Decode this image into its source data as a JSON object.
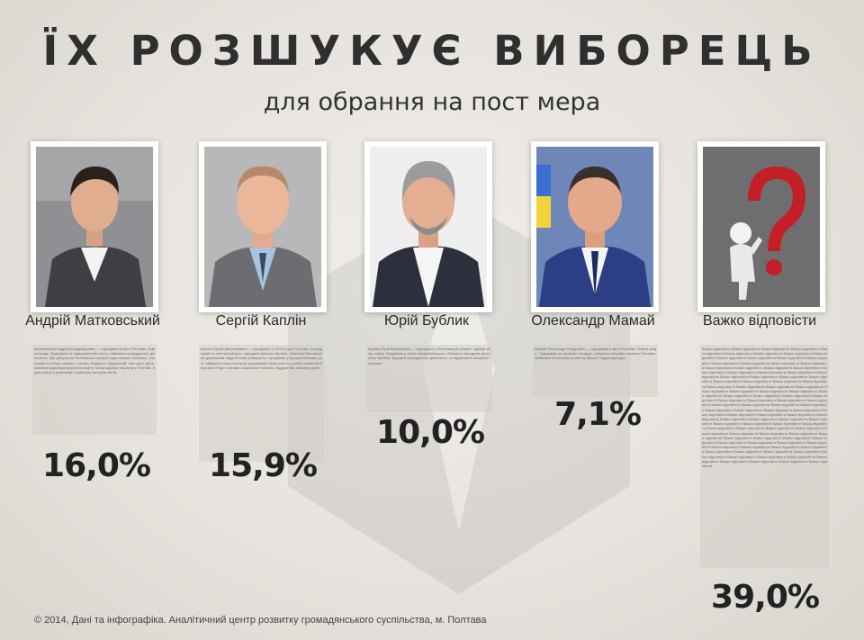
{
  "header": {
    "title": "ЇХ РОЗШУКУЄ ВИБОРЕЦЬ",
    "subtitle": "для обрання на пост мера"
  },
  "candidates": [
    {
      "name": "Андрій Матковський",
      "percent_label": "16,0%",
      "bio": "Матковський Андрій Володимирович — народився в місті Полтава. Освіта вища. Працював на підприємствах міста, займався громадською діяльністю, був депутатом Полтавської міської ради кількох скликань, очолював постійну комісію з питань бюджету. Одружений, має двох дітей. Активно підтримує розвиток спорту та молодіжних ініціатив у Полтаві, брав участь у реалізації соціальних програм міста."
    },
    {
      "name": "Сергій Каплін",
      "percent_label": "15,9%",
      "bio": "Каплін Сергій Миколайович — народився у 1979 році в Полтаві. Громадський та політичний діяч, народний депутат України. Закінчив Полтавський державний педагогічний університет, працював у профспілковому русі, займався захистом прав працівників. Брав участь у роботі комітетів Верховної Ради з питань соціальної політики. Одружений, виховує дітей."
    },
    {
      "name": "Юрій Бублик",
      "percent_label": "10,0%",
      "bio": "Бублик Юрій Васильович — народився у Полтавській області. Здобув вищу освіту. Працював у сфері підприємництва, обирався народним депутатом України. Відомий громадською діяльністю та підтримкою місцевих ініціатив."
    },
    {
      "name": "Олександр Мамай",
      "percent_label": "7,1%",
      "bio": "Мамай Олександр Федорович — народився в місті Полтава. Освіта вища. Працював на керівних посадах, обирався міським головою Полтави. Займався питаннями розвитку міської інфраструктури."
    },
    {
      "name": "Важко відповісти",
      "percent_label": "39,0%",
      "bio": "Важко відповісти Важко відповісти Важко відповісти Важко відповісти Важко відповісти Важко відповісти Важко відповісти Важко відповісти Важко відповісти Важко відповісти Важко відповісти Важко відповісти Важко відповісти Важко відповісти Важко відповісти Важко відповісти Важко відповісти Важко відповісти Важко відповісти Важко відповісти Важко відповісти Важко відповісти Важко відповісти Важко відповісти Важко відповісти Важко відповісти Важко відповісти Важко відповісти Важко відповісти Важко відповісти Важко відповісти Важко відповісти Важко відповісти Важко відповісти Важко відповісти Важко відповісти Важко відповісти Важко відповісти Важко відповісти Важко відповісти Важко відповісти Важко відповісти Важко відповісти Важко відповісти Важко відповісти Важко відповісти Важко відповісти Важко відповісти Важко відповісти Важко відповісти Важко відповісти Важко відповісти Важко відповісти Важко відповісти Важко відповісти Важко відповісти Важко відповісти Важко відповісти Важко відповісти Важко відповісти Важко відповісти Важко відповісти Важко відповісти Важко відповісти Важко відповісти Важко відповісти Важко відповісти Важко відповісти Важко відповісти Важко відповісти Важко відповісти Важко відповісти Важко відповісти Важко відповісти Важко відповісти Важко відповісти Важко відповісти Важко відповісти Важко відповісти Важко відповісти Важко відповісти Важко відповісти Важко відповісти Важко відповісти Важко відповісти Важко відповісти Важко відповісти Важко відповісти Важко відповісти Важко відповісти Важко відповісти Важко відповісти Важко відповісти Важко відповісти Важко відповісти Важко відповісти Важко відповісти Важко відповісти Важко відповісти Важко відповісти Важко відповісти Важко відповісти Важко відповісти Важко відповісти Важко відповісти Важко відповісти"
    }
  ],
  "chart_data": {
    "type": "bar",
    "categories": [
      "Андрій Матковський",
      "Сергій Каплін",
      "Юрій Бублик",
      "Олександр Мамай",
      "Важко відповісти"
    ],
    "values": [
      16.0,
      15.9,
      10.0,
      7.1,
      39.0
    ],
    "title": "ЇХ РОЗШУКУЄ ВИБОРЕЦЬ",
    "subtitle": "для обрання на пост мера",
    "unit": "%",
    "ylim": [
      0,
      40
    ]
  },
  "colors": {
    "text": "#222222",
    "bio_bg": "#d2cec8",
    "background": "#e7e3de"
  },
  "footer": {
    "text": "© 2014, Дані та інфографіка.  Аналітичний центр розвитку громадянського суспільства, м. Полтава"
  }
}
